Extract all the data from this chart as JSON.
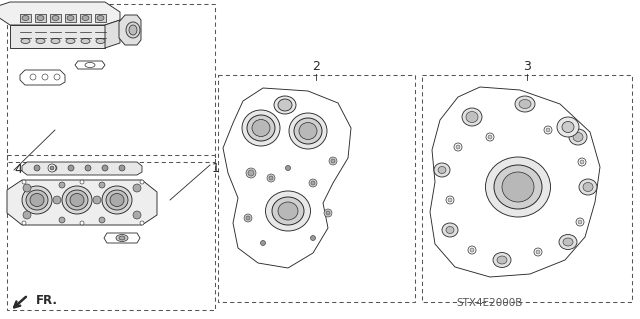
{
  "bg_color": "#ffffff",
  "line_color": "#2a2a2a",
  "dashed_color": "#555555",
  "label_1": "1",
  "label_2": "2",
  "label_3": "3",
  "label_4": "4",
  "fr_label": "FR.",
  "part_number": "STX4E2000B",
  "label_fontsize": 9,
  "part_fontsize": 7.5
}
